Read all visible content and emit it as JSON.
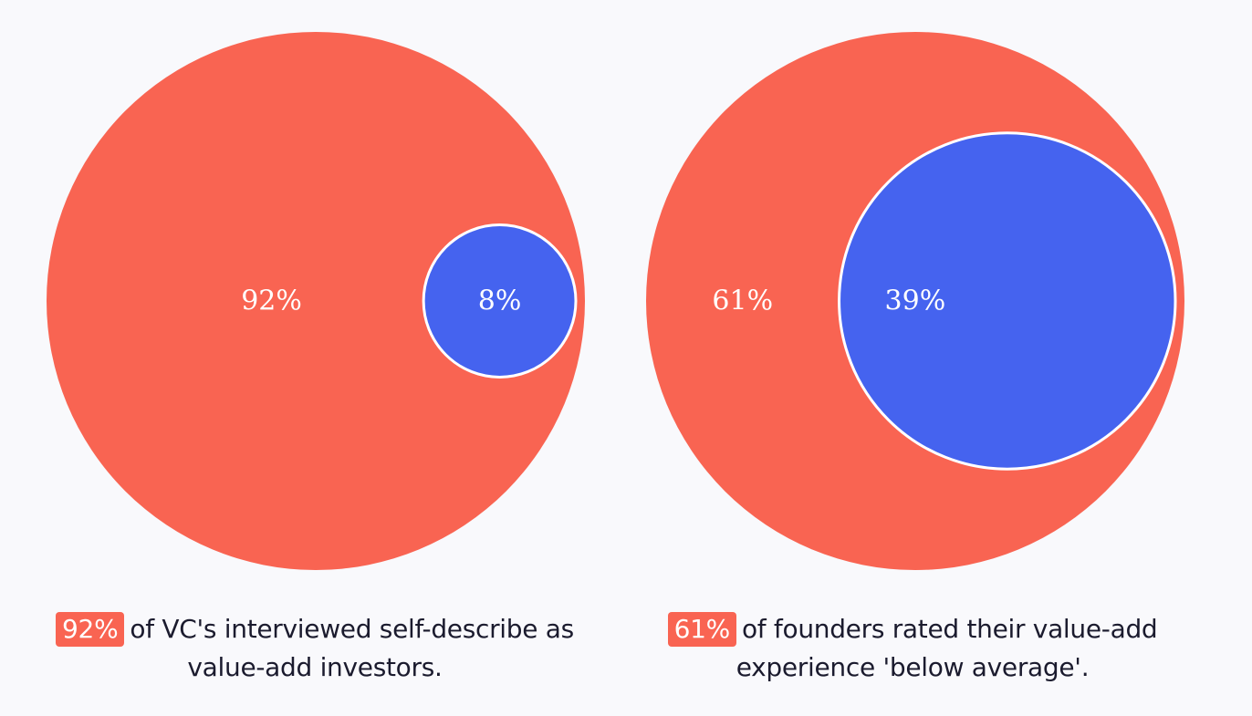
{
  "colors": {
    "outer": "#f96452",
    "inner": "#4563ef",
    "stroke": "#ffffff",
    "background": "#f9f9fc"
  },
  "chart_data": [
    {
      "type": "nested-circle",
      "series": [
        {
          "label": "92%",
          "value": 92
        },
        {
          "label": "8%",
          "value": 8
        }
      ],
      "caption": {
        "highlight": "92%",
        "text": "of VC's interviewed self-describe as value-add investors."
      }
    },
    {
      "type": "nested-circle",
      "series": [
        {
          "label": "61%",
          "value": 61
        },
        {
          "label": "39%",
          "value": 39
        }
      ],
      "caption": {
        "highlight": "61%",
        "text": "of founders rated their value-add experience 'below average'."
      }
    }
  ]
}
